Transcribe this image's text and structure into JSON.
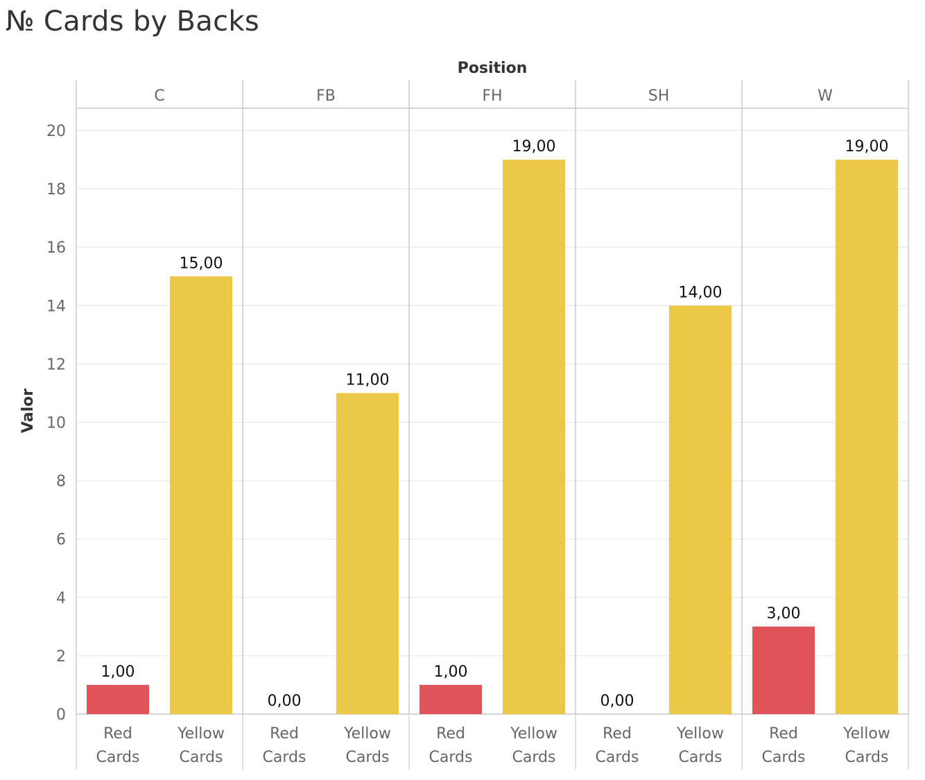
{
  "title": "№  Cards by Backs",
  "chart_data": {
    "type": "bar",
    "facet_label": "Position",
    "ylabel": "Valor",
    "ylim": [
      0,
      20
    ],
    "yticks": [
      0,
      2,
      4,
      6,
      8,
      10,
      12,
      14,
      16,
      18,
      20
    ],
    "grid": true,
    "legend": "none",
    "facets": [
      "C",
      "FB",
      "FH",
      "SH",
      "W"
    ],
    "categories": [
      [
        "Red",
        "Cards"
      ],
      [
        "Yellow",
        "Cards"
      ]
    ],
    "category_colors": [
      "#e05358",
      "#ebc946"
    ],
    "values": [
      [
        1,
        15
      ],
      [
        0,
        11
      ],
      [
        1,
        19
      ],
      [
        0,
        14
      ],
      [
        3,
        19
      ]
    ],
    "value_labels": [
      [
        "1,00",
        "15,00"
      ],
      [
        "0,00",
        "11,00"
      ],
      [
        "1,00",
        "19,00"
      ],
      [
        "0,00",
        "14,00"
      ],
      [
        "3,00",
        "19,00"
      ]
    ]
  }
}
